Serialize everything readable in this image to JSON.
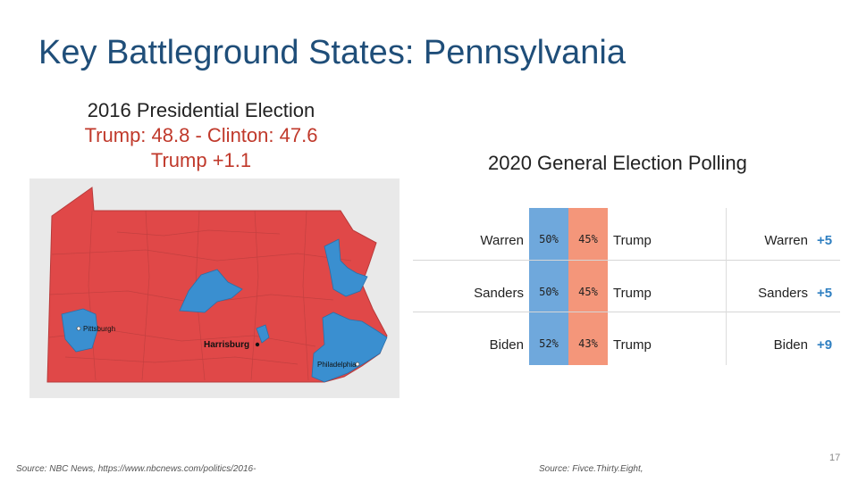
{
  "slide": {
    "title": "Key Battleground States: Pennsylvania",
    "page_number": "17"
  },
  "left_panel": {
    "line1": "2016 Presidential Election",
    "line2": "Trump: 48.8 - Clinton: 47.6",
    "line3": "Trump +1.1"
  },
  "map": {
    "cities": [
      "Pittsburgh",
      "Harrisburg",
      "Philadelphia"
    ],
    "colors": {
      "trump": "#e04848",
      "clinton": "#3a8fd0",
      "background": "#e9e9e9"
    }
  },
  "right_panel": {
    "heading": "2020 General Election Polling",
    "polls": [
      {
        "candidate": "Warren",
        "dem_pct": "50%",
        "gop_pct": "45%",
        "opponent": "Trump",
        "leader": "Warren",
        "margin": "+5"
      },
      {
        "candidate": "Sanders",
        "dem_pct": "50%",
        "gop_pct": "45%",
        "opponent": "Trump",
        "leader": "Sanders",
        "margin": "+5"
      },
      {
        "candidate": "Biden",
        "dem_pct": "52%",
        "gop_pct": "43%",
        "opponent": "Trump",
        "leader": "Biden",
        "margin": "+9"
      }
    ],
    "colors": {
      "dem": "#6fa8dc",
      "gop": "#f4967a",
      "margin": "#2f7fc1"
    }
  },
  "sources": {
    "left": "Source: NBC News, https://www.nbcnews.com/politics/2016-",
    "right": "Source: Fivce.Thirty.Eight,"
  }
}
